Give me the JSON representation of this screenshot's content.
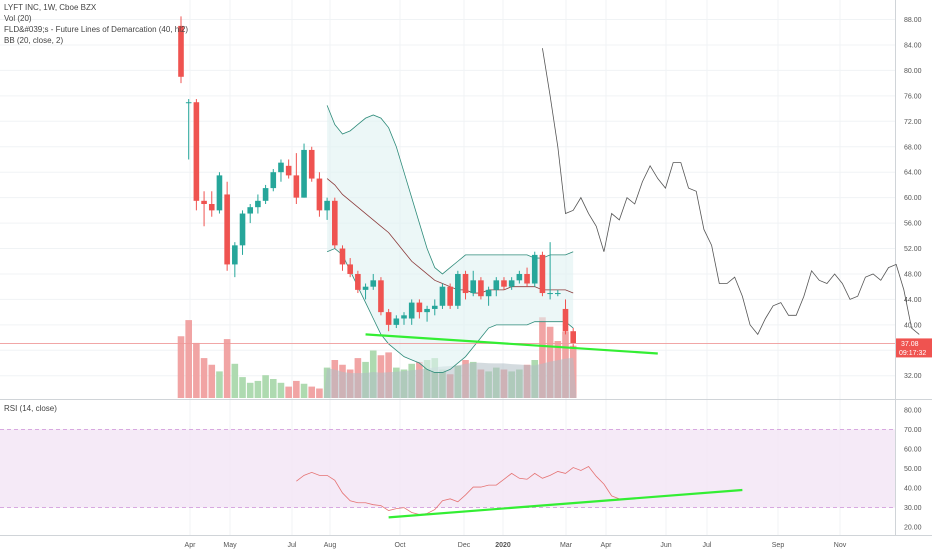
{
  "legend": {
    "main": "LYFT INC, 1W, Cboe BZX",
    "vol": "Vol (20)",
    "fld": "FLD&#039;s - Future Lines of Demarcation (40, hl2)",
    "bb": "BB (20, close, 2)",
    "rsi": "RSI (14, close)"
  },
  "price_badge": {
    "price": "37.08",
    "countdown": "09:17:32"
  },
  "colors": {
    "up": "#26a69a",
    "down": "#ef5350",
    "vol_up": "#a5d6a7",
    "vol_down": "#ef9a9a",
    "vol_ma": "#b0bec5",
    "bb_band": "#2e8b7a",
    "bb_basis": "#8b3a3a",
    "bb_fill": "#e0f2f1",
    "fld": "#555555",
    "rsi": "#e57373",
    "rsi_fill": "#f3e5f5",
    "trend": "#33ee33",
    "price_line": "#ef9a9a"
  },
  "chart_data": [
    {
      "type": "candlestick",
      "x_labels": [
        "Apr",
        "May",
        "Jul",
        "Aug",
        "Oct",
        "Dec",
        "2020",
        "Mar",
        "Apr",
        "Jun",
        "Jul",
        "Sep",
        "Nov"
      ],
      "y_ticks": [
        32,
        36,
        40,
        44,
        48,
        52,
        56,
        60,
        64,
        68,
        72,
        76,
        80,
        84,
        88
      ],
      "ylim": [
        28.5,
        89.5
      ],
      "candles": [
        {
          "o": 87.0,
          "h": 88.5,
          "l": 78.0,
          "c": 79.0
        },
        {
          "o": 75.0,
          "h": 75.5,
          "l": 66.0,
          "c": 75.0
        },
        {
          "o": 75.0,
          "h": 75.5,
          "l": 58.0,
          "c": 59.5
        },
        {
          "o": 59.5,
          "h": 61.0,
          "l": 55.5,
          "c": 59.0
        },
        {
          "o": 59.0,
          "h": 61.0,
          "l": 57.0,
          "c": 58.0
        },
        {
          "o": 58.0,
          "h": 64.0,
          "l": 57.5,
          "c": 63.5
        },
        {
          "o": 60.5,
          "h": 62.5,
          "l": 48.5,
          "c": 49.5
        },
        {
          "o": 49.5,
          "h": 53.0,
          "l": 47.5,
          "c": 52.5
        },
        {
          "o": 52.5,
          "h": 58.0,
          "l": 51.0,
          "c": 57.5
        },
        {
          "o": 57.5,
          "h": 59.0,
          "l": 56.0,
          "c": 58.5
        },
        {
          "o": 58.5,
          "h": 60.5,
          "l": 57.5,
          "c": 59.5
        },
        {
          "o": 59.5,
          "h": 62.0,
          "l": 59.0,
          "c": 61.5
        },
        {
          "o": 61.5,
          "h": 64.5,
          "l": 61.0,
          "c": 64.0
        },
        {
          "o": 64.0,
          "h": 66.0,
          "l": 62.5,
          "c": 65.5
        },
        {
          "o": 65.0,
          "h": 66.0,
          "l": 63.0,
          "c": 63.5
        },
        {
          "o": 63.5,
          "h": 67.0,
          "l": 59.0,
          "c": 60.0
        },
        {
          "o": 60.0,
          "h": 68.5,
          "l": 60.0,
          "c": 67.5
        },
        {
          "o": 67.5,
          "h": 68.0,
          "l": 62.5,
          "c": 63.0
        },
        {
          "o": 63.0,
          "h": 64.0,
          "l": 57.0,
          "c": 58.0
        },
        {
          "o": 58.0,
          "h": 60.0,
          "l": 56.5,
          "c": 59.5
        },
        {
          "o": 59.5,
          "h": 60.0,
          "l": 52.0,
          "c": 52.5
        },
        {
          "o": 52.0,
          "h": 52.5,
          "l": 48.5,
          "c": 49.5
        },
        {
          "o": 49.5,
          "h": 50.5,
          "l": 47.5,
          "c": 48.0
        },
        {
          "o": 48.0,
          "h": 48.5,
          "l": 45.0,
          "c": 45.5
        },
        {
          "o": 45.5,
          "h": 46.5,
          "l": 44.0,
          "c": 46.0
        },
        {
          "o": 46.0,
          "h": 48.0,
          "l": 45.5,
          "c": 47.0
        },
        {
          "o": 47.0,
          "h": 47.5,
          "l": 41.5,
          "c": 42.0
        },
        {
          "o": 42.0,
          "h": 42.5,
          "l": 39.0,
          "c": 40.0
        },
        {
          "o": 40.0,
          "h": 41.5,
          "l": 39.5,
          "c": 41.0
        },
        {
          "o": 41.0,
          "h": 42.0,
          "l": 40.0,
          "c": 41.5
        },
        {
          "o": 41.0,
          "h": 44.0,
          "l": 40.0,
          "c": 43.5
        },
        {
          "o": 43.5,
          "h": 44.0,
          "l": 41.0,
          "c": 42.0
        },
        {
          "o": 42.0,
          "h": 43.0,
          "l": 40.5,
          "c": 42.5
        },
        {
          "o": 42.5,
          "h": 44.0,
          "l": 41.5,
          "c": 43.0
        },
        {
          "o": 43.0,
          "h": 46.5,
          "l": 42.5,
          "c": 46.0
        },
        {
          "o": 46.0,
          "h": 46.5,
          "l": 42.5,
          "c": 43.0
        },
        {
          "o": 43.0,
          "h": 48.5,
          "l": 42.5,
          "c": 48.0
        },
        {
          "o": 48.0,
          "h": 48.5,
          "l": 44.0,
          "c": 45.0
        },
        {
          "o": 45.0,
          "h": 48.5,
          "l": 44.5,
          "c": 47.0
        },
        {
          "o": 47.0,
          "h": 47.5,
          "l": 44.0,
          "c": 44.5
        },
        {
          "o": 44.5,
          "h": 46.0,
          "l": 43.0,
          "c": 45.5
        },
        {
          "o": 45.5,
          "h": 47.5,
          "l": 44.5,
          "c": 47.0
        },
        {
          "o": 47.0,
          "h": 47.5,
          "l": 45.5,
          "c": 46.0
        },
        {
          "o": 46.0,
          "h": 47.5,
          "l": 45.5,
          "c": 47.0
        },
        {
          "o": 47.0,
          "h": 48.5,
          "l": 46.5,
          "c": 48.0
        },
        {
          "o": 48.0,
          "h": 49.0,
          "l": 46.0,
          "c": 46.5
        },
        {
          "o": 46.5,
          "h": 51.5,
          "l": 46.0,
          "c": 51.0
        },
        {
          "o": 51.0,
          "h": 51.5,
          "l": 44.5,
          "c": 45.0
        },
        {
          "o": 45.0,
          "h": 53.0,
          "l": 44.0,
          "c": 45.0
        },
        {
          "o": 45.0,
          "h": 45.5,
          "l": 44.5,
          "c": 45.0
        },
        {
          "o": 42.5,
          "h": 44.0,
          "l": 38.5,
          "c": 39.0
        },
        {
          "o": 39.0,
          "h": 39.5,
          "l": 36.5,
          "c": 37.08
        }
      ],
      "volume": [
        {
          "v": 0.65,
          "up": false
        },
        {
          "v": 0.82,
          "up": false
        },
        {
          "v": 0.58,
          "up": false
        },
        {
          "v": 0.42,
          "up": false
        },
        {
          "v": 0.35,
          "up": false
        },
        {
          "v": 0.28,
          "up": true
        },
        {
          "v": 0.62,
          "up": false
        },
        {
          "v": 0.36,
          "up": true
        },
        {
          "v": 0.22,
          "up": true
        },
        {
          "v": 0.16,
          "up": true
        },
        {
          "v": 0.18,
          "up": true
        },
        {
          "v": 0.24,
          "up": true
        },
        {
          "v": 0.2,
          "up": true
        },
        {
          "v": 0.16,
          "up": true
        },
        {
          "v": 0.12,
          "up": false
        },
        {
          "v": 0.18,
          "up": false
        },
        {
          "v": 0.15,
          "up": true
        },
        {
          "v": 0.12,
          "up": false
        },
        {
          "v": 0.1,
          "up": false
        },
        {
          "v": 0.32,
          "up": true
        },
        {
          "v": 0.4,
          "up": false
        },
        {
          "v": 0.35,
          "up": false
        },
        {
          "v": 0.3,
          "up": false
        },
        {
          "v": 0.42,
          "up": false
        },
        {
          "v": 0.38,
          "up": true
        },
        {
          "v": 0.5,
          "up": true
        },
        {
          "v": 0.45,
          "up": false
        },
        {
          "v": 0.48,
          "up": false
        },
        {
          "v": 0.32,
          "up": true
        },
        {
          "v": 0.3,
          "up": true
        },
        {
          "v": 0.36,
          "up": true
        },
        {
          "v": 0.38,
          "up": false
        },
        {
          "v": 0.4,
          "up": true
        },
        {
          "v": 0.42,
          "up": true
        },
        {
          "v": 0.3,
          "up": true
        },
        {
          "v": 0.25,
          "up": false
        },
        {
          "v": 0.34,
          "up": true
        },
        {
          "v": 0.4,
          "up": false
        },
        {
          "v": 0.38,
          "up": true
        },
        {
          "v": 0.3,
          "up": false
        },
        {
          "v": 0.28,
          "up": true
        },
        {
          "v": 0.32,
          "up": true
        },
        {
          "v": 0.3,
          "up": false
        },
        {
          "v": 0.28,
          "up": true
        },
        {
          "v": 0.3,
          "up": true
        },
        {
          "v": 0.35,
          "up": false
        },
        {
          "v": 0.4,
          "up": true
        },
        {
          "v": 0.85,
          "up": false
        },
        {
          "v": 0.75,
          "up": false
        },
        {
          "v": 0.6,
          "up": false
        },
        {
          "v": 0.7,
          "up": false
        },
        {
          "v": 0.55,
          "up": false
        }
      ],
      "bollinger": {
        "start": 19,
        "upper": [
          74.5,
          71.5,
          70.0,
          70.5,
          71.5,
          72.5,
          73.0,
          72.5,
          71.0,
          68.0,
          64.0,
          60.0,
          56.0,
          52.0,
          49.0,
          48.0,
          49.0,
          50.0,
          51.0,
          51.0,
          51.0,
          51.0,
          51.0,
          51.0,
          51.0,
          51.0,
          51.0,
          50.5,
          50.5,
          51.0,
          51.0,
          51.0,
          51.5
        ],
        "basis": [
          63.0,
          62.0,
          60.5,
          59.5,
          58.5,
          57.5,
          56.5,
          55.5,
          54.5,
          53.0,
          51.5,
          50.0,
          49.0,
          48.0,
          47.0,
          46.5,
          46.0,
          45.5,
          45.5,
          45.0,
          45.0,
          45.5,
          45.5,
          45.5,
          46.0,
          46.0,
          46.0,
          46.0,
          45.5,
          45.5,
          45.5,
          45.5,
          45.0
        ],
        "lower": [
          51.5,
          52.0,
          51.0,
          48.5,
          46.0,
          43.5,
          41.0,
          38.5,
          37.0,
          36.0,
          35.0,
          34.5,
          34.0,
          33.0,
          32.5,
          32.5,
          33.0,
          34.0,
          35.0,
          36.5,
          38.0,
          39.5,
          40.0,
          40.0,
          40.0,
          40.0,
          40.0,
          40.5,
          40.5,
          40.5,
          40.5,
          40.5,
          39.5
        ]
      },
      "fld": {
        "start": 47,
        "values": [
          83.5,
          76.0,
          68.0,
          57.5,
          58.0,
          60.0,
          57.5,
          55.5,
          51.5,
          57.5,
          56.5,
          60.0,
          59.0,
          62.5,
          65.0,
          63.0,
          61.5,
          65.5,
          65.5,
          61.5,
          61.0,
          55.0,
          52.5,
          46.5,
          46.5,
          47.5,
          44.5,
          40.0,
          38.5,
          41.0,
          43.0,
          43.5,
          41.5,
          41.5,
          44.5,
          48.5,
          47.0,
          46.5,
          48.0,
          46.5,
          44.0,
          44.5,
          47.5,
          48.0,
          47.0,
          49.0,
          49.5,
          45.5,
          39.5,
          38.5
        ]
      },
      "trendline": {
        "from": [
          24,
          38.5
        ],
        "to": [
          62,
          35.5
        ]
      },
      "last_price": 37.08
    },
    {
      "type": "line",
      "title": "RSI (14, close)",
      "y_ticks": [
        20,
        30,
        40,
        50,
        60,
        70,
        80
      ],
      "ylim": [
        16,
        84
      ],
      "band": [
        30,
        70
      ],
      "start": 15,
      "values": [
        43.5,
        46.5,
        48.0,
        46.5,
        46.5,
        44.0,
        37.5,
        33.5,
        32.5,
        32.5,
        31.5,
        31.0,
        28.5,
        29.5,
        30.0,
        27.5,
        26.5,
        27.0,
        29.0,
        33.5,
        34.5,
        33.0,
        36.5,
        40.5,
        40.5,
        41.5,
        41.5,
        44.5,
        47.5,
        45.0,
        44.5,
        47.5,
        45.0,
        46.5,
        48.5,
        47.5,
        50.5,
        49.0,
        51.0,
        46.0,
        42.0,
        36.0,
        34.5
      ],
      "trendline": {
        "from": [
          27,
          25.0
        ],
        "to": [
          73,
          39.0
        ]
      }
    }
  ]
}
